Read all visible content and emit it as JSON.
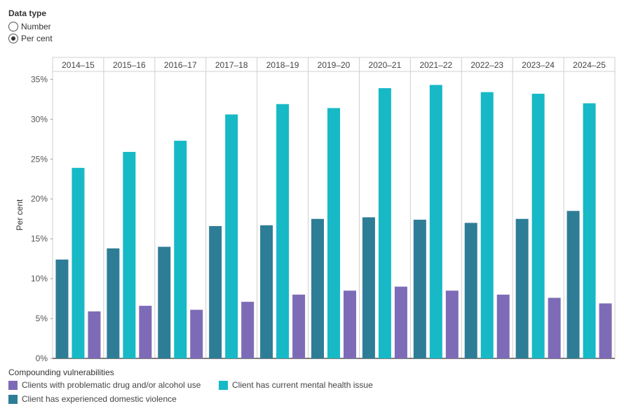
{
  "filter": {
    "title": "Data type",
    "options": [
      {
        "label": "Number",
        "selected": false
      },
      {
        "label": "Per cent",
        "selected": true
      }
    ]
  },
  "chart_data": {
    "type": "bar",
    "categories": [
      "2014–15",
      "2015–16",
      "2016–17",
      "2017–18",
      "2018–19",
      "2019–20",
      "2020–21",
      "2021–22",
      "2022–23",
      "2023–24",
      "2024–25"
    ],
    "series": [
      {
        "name": "Client has experienced domestic violence",
        "color": "#2e7d96",
        "values": [
          12.4,
          13.8,
          14.0,
          16.6,
          16.7,
          17.5,
          17.7,
          17.4,
          17.0,
          17.5,
          18.5
        ]
      },
      {
        "name": "Client has current mental health issue",
        "color": "#17b9c6",
        "values": [
          23.9,
          25.9,
          27.3,
          30.6,
          31.9,
          31.4,
          33.9,
          34.3,
          33.4,
          33.2,
          32.0
        ]
      },
      {
        "name": "Clients with problematic drug and/or alcohol use",
        "color": "#7e6bb7",
        "values": [
          5.9,
          6.6,
          6.1,
          7.1,
          8.0,
          8.5,
          9.0,
          8.5,
          8.0,
          7.6,
          6.9
        ]
      }
    ],
    "ylabel": "Per cent",
    "yticks": [
      0,
      5,
      10,
      15,
      20,
      25,
      30,
      35
    ],
    "ytick_labels": [
      "0%",
      "5%",
      "10%",
      "15%",
      "20%",
      "25%",
      "30%",
      "35%"
    ],
    "ylim": [
      0,
      36
    ],
    "grid": false
  },
  "legend": {
    "title": "Compounding vulnerabilities",
    "items": [
      {
        "label": "Clients with problematic drug and/or alcohol use",
        "color": "#7e6bb7"
      },
      {
        "label": "Client has current mental health issue",
        "color": "#17b9c6"
      },
      {
        "label": "Client has experienced domestic violence",
        "color": "#2e7d96"
      }
    ]
  }
}
